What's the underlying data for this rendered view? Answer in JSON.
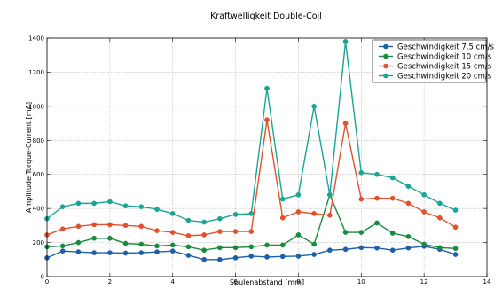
{
  "chart_data": {
    "type": "line",
    "title": "Kraftwelligkeit Double-Coil",
    "xlabel": "Spulenabstand [mm]",
    "ylabel": "Amplitude Torque-Current [mA]",
    "xlim": [
      0,
      14
    ],
    "ylim": [
      0,
      1400
    ],
    "xticks": [
      0,
      2,
      4,
      6,
      8,
      10,
      12,
      14
    ],
    "yticks": [
      0,
      200,
      400,
      600,
      800,
      1000,
      1200,
      1400
    ],
    "xtick_labels": [
      "0",
      "2",
      "4",
      "6",
      "8",
      "10",
      "12",
      "14"
    ],
    "ytick_labels": [
      "0",
      "200",
      "400",
      "600",
      "800",
      "1000",
      "1200",
      "1400"
    ],
    "grid": true,
    "legend_position": "top-right",
    "x": [
      0,
      0.5,
      1,
      1.5,
      2,
      2.5,
      3,
      3.5,
      4,
      4.5,
      5,
      5.5,
      6,
      6.5,
      7,
      7.5,
      8,
      8.5,
      9,
      9.5,
      10,
      10.5,
      11,
      11.5,
      12,
      12.5,
      13
    ],
    "series": [
      {
        "name": "Geschwindigkeit 7.5 cm/s",
        "color": "#1f5fa8",
        "values": [
          110,
          150,
          145,
          140,
          140,
          138,
          140,
          145,
          150,
          125,
          100,
          100,
          110,
          120,
          115,
          118,
          120,
          130,
          155,
          160,
          170,
          168,
          155,
          168,
          178,
          160,
          130
        ]
      },
      {
        "name": "Geschwindigkeit 10 cm/s",
        "color": "#1a8a3d",
        "values": [
          175,
          180,
          200,
          225,
          225,
          195,
          190,
          180,
          185,
          175,
          155,
          170,
          170,
          175,
          185,
          185,
          245,
          190,
          480,
          260,
          260,
          315,
          255,
          235,
          190,
          170,
          165
        ]
      },
      {
        "name": "Geschwindigkeit 15 cm/s",
        "color": "#e0522f",
        "values": [
          245,
          280,
          295,
          305,
          305,
          300,
          295,
          270,
          260,
          240,
          245,
          265,
          265,
          265,
          920,
          345,
          380,
          370,
          360,
          900,
          455,
          460,
          460,
          430,
          380,
          345,
          290
        ]
      },
      {
        "name": "Geschwindigkeit 20 cm/s",
        "color": "#1aa593",
        "values": [
          340,
          410,
          430,
          430,
          440,
          415,
          410,
          395,
          370,
          330,
          320,
          340,
          365,
          370,
          1105,
          455,
          480,
          1000,
          480,
          1380,
          610,
          600,
          580,
          530,
          480,
          430,
          390
        ]
      }
    ]
  }
}
